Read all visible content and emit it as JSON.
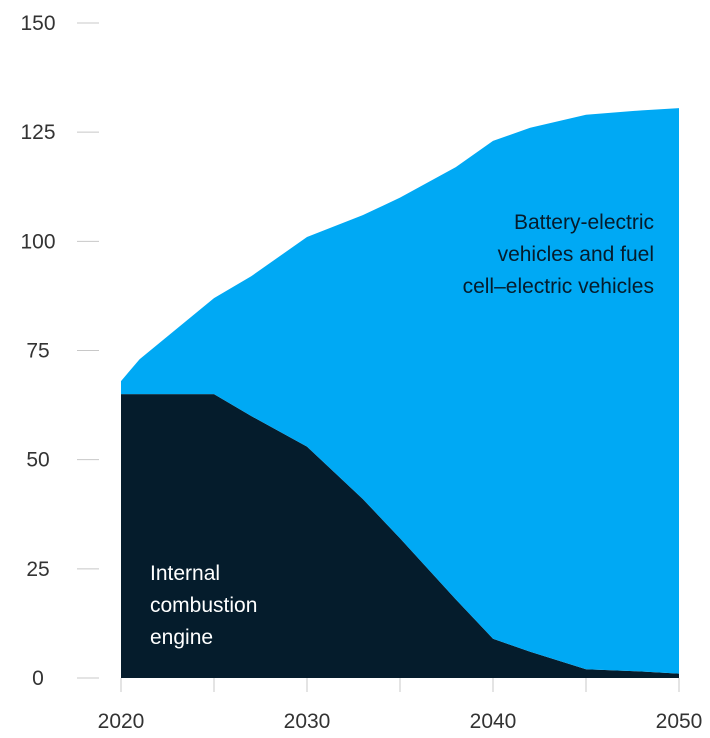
{
  "colors": {
    "ice": "#051c2c",
    "bev_fcev": "#00a9f4",
    "axis_text": "#333333",
    "ice_label": "#ffffff",
    "bev_label": "#051c2c"
  },
  "chart_data": {
    "type": "area",
    "stacked": true,
    "x": [
      2020,
      2021,
      2025,
      2027,
      2030,
      2033,
      2035,
      2038,
      2040,
      2042,
      2045,
      2048,
      2050
    ],
    "xticks": [
      2020,
      2030,
      2040,
      2050
    ],
    "yticks": [
      0,
      25,
      50,
      75,
      100,
      125,
      150
    ],
    "ylim": [
      0,
      150
    ],
    "xlim": [
      2020,
      2050
    ],
    "grid": false,
    "series": [
      {
        "values": [
          65,
          65,
          65,
          60,
          53,
          41,
          32,
          18,
          9,
          6,
          2,
          1.5,
          1
        ],
        "label_lines": [
          "Internal",
          "combustion",
          "engine"
        ]
      },
      {
        "values": [
          3,
          8,
          22,
          32,
          48,
          65,
          78,
          99,
          114,
          120,
          127,
          128.5,
          129.5
        ],
        "label_lines": [
          "Battery-electric",
          "vehicles and fuel",
          "cell–electric vehicles"
        ]
      }
    ]
  }
}
